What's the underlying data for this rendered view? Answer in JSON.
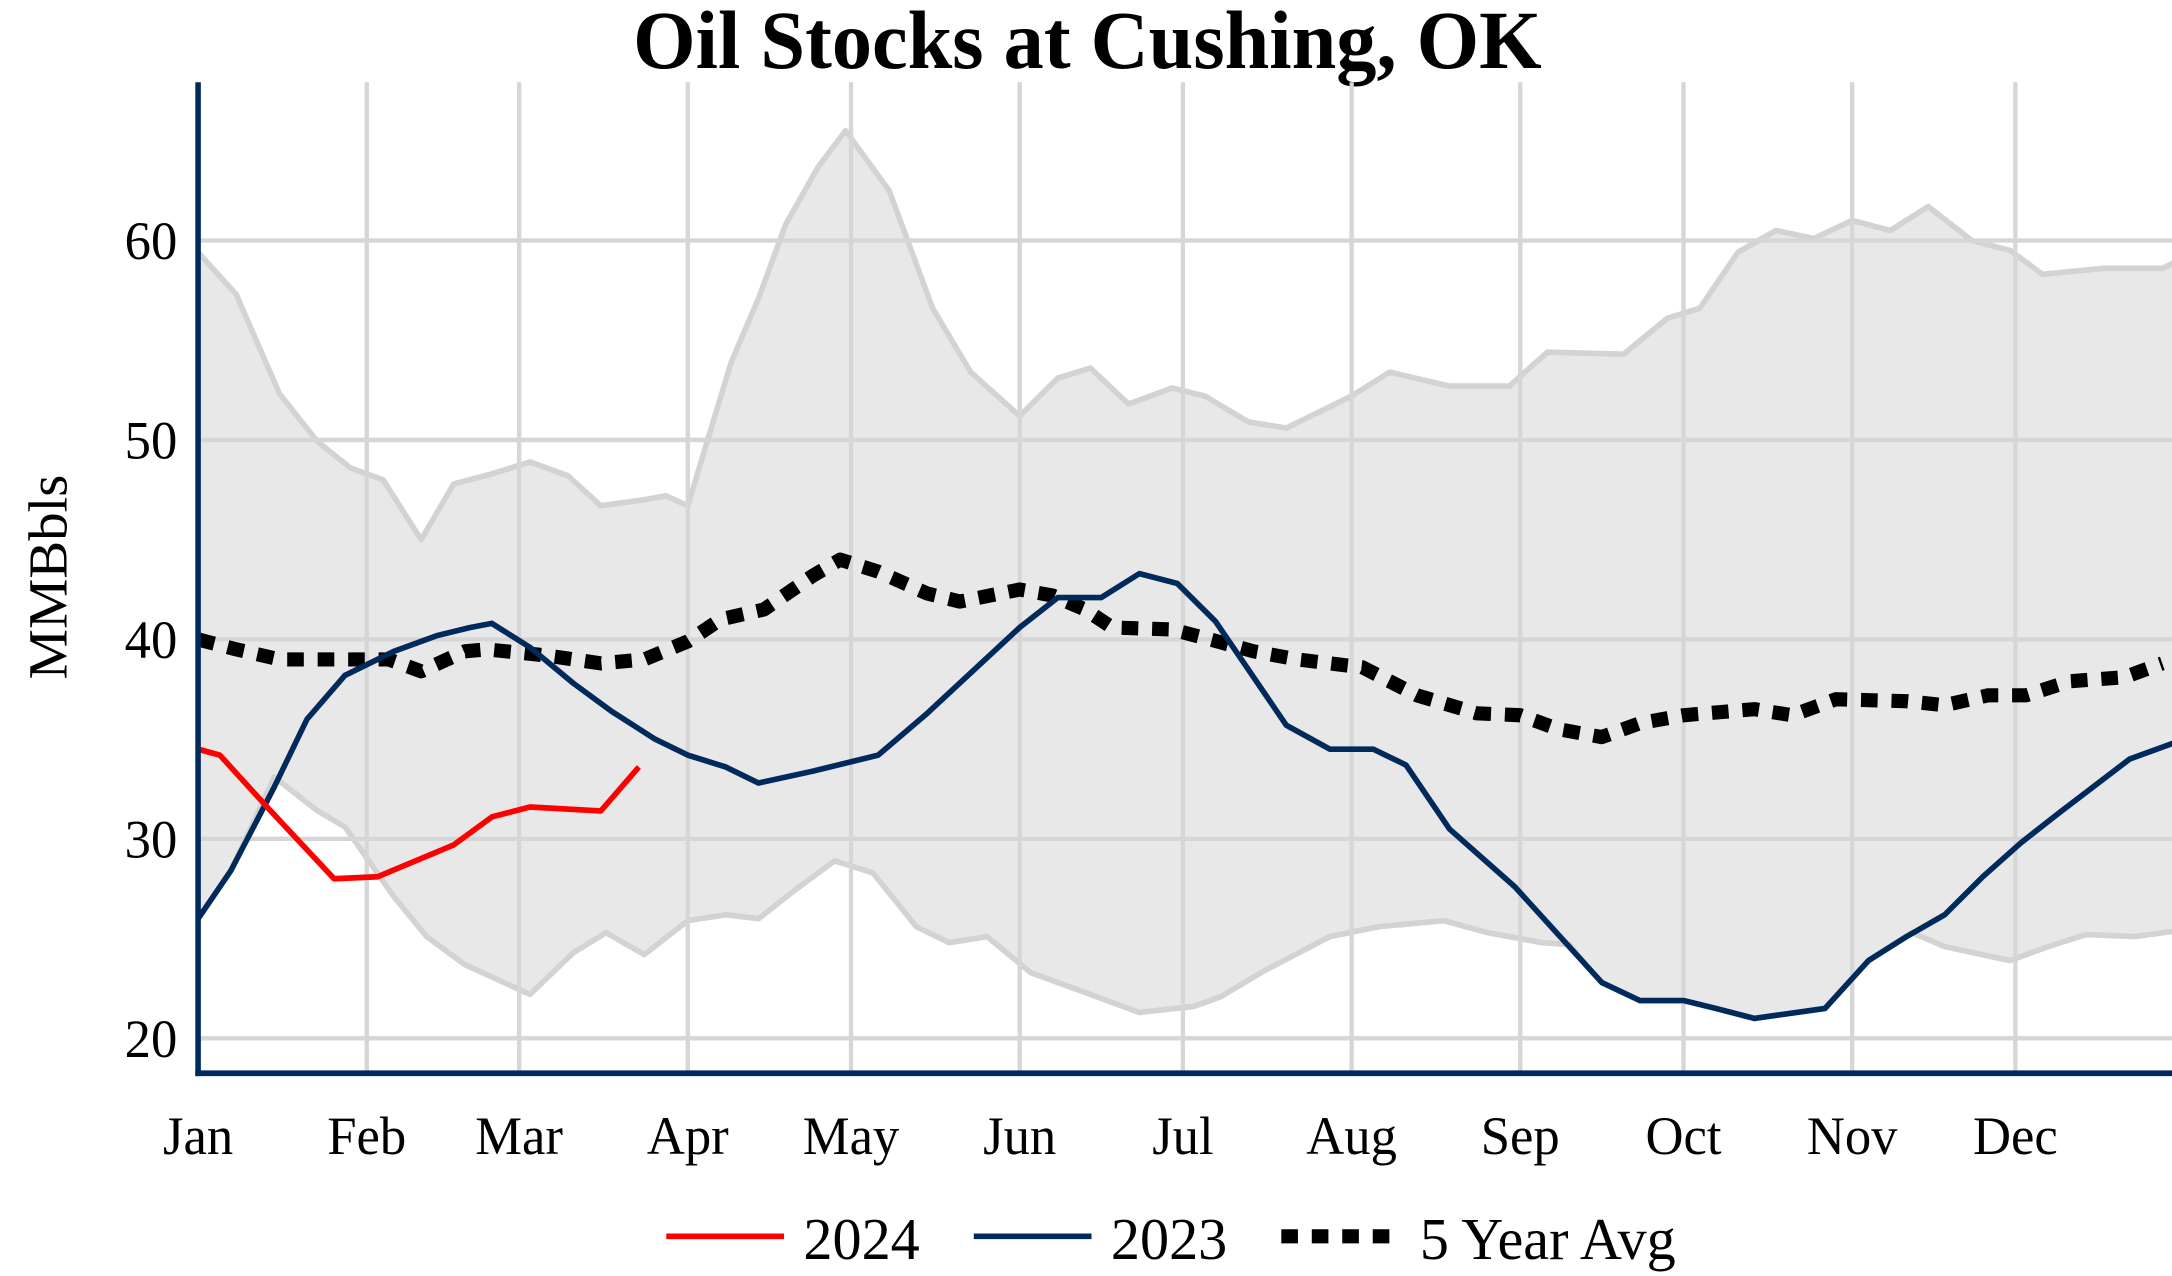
{
  "chart_data": {
    "type": "line",
    "title": "Oil Stocks at Cushing, OK",
    "xlabel": "",
    "ylabel": "MMBbls",
    "ylim": [
      18.3,
      68
    ],
    "yticks": [
      20,
      30,
      40,
      50,
      60
    ],
    "xticks": [
      "Jan",
      "Feb",
      "Mar",
      "Apr",
      "May",
      "Jun",
      "Jul",
      "Aug",
      "Sep",
      "Oct",
      "Nov",
      "Dec"
    ],
    "grid": true,
    "legend_position": "bottom",
    "colors": {
      "2024": "#ff0000",
      "2023": "#002a5c",
      "avg": "#000000",
      "range_fill": "#e8e8e8",
      "range_line": "#d3d3d3",
      "grid": "#d6d6d6",
      "axis": "#002a5c"
    },
    "range": {
      "max": [
        [
          "Jan 01",
          59.4
        ],
        [
          "Jan 08",
          57.3
        ],
        [
          "Jan 16",
          52.3
        ],
        [
          "Jan 23",
          49.9
        ],
        [
          "Jan 29",
          48.6
        ],
        [
          "Feb 04",
          48.0
        ],
        [
          "Feb 11",
          45.0
        ],
        [
          "Feb 17",
          47.8
        ],
        [
          "Feb 24",
          48.3
        ],
        [
          "Mar 03",
          48.9
        ],
        [
          "Mar 10",
          48.2
        ],
        [
          "Mar 16",
          46.7
        ],
        [
          "Mar 24",
          47.0
        ],
        [
          "Mar 28",
          47.2
        ],
        [
          "Apr 01",
          46.7
        ],
        [
          "Apr 09",
          53.9
        ],
        [
          "Apr 14",
          57.1
        ],
        [
          "Apr 19",
          60.8
        ],
        [
          "Apr 25",
          63.7
        ],
        [
          "Apr 30",
          65.5
        ],
        [
          "May 08",
          62.5
        ],
        [
          "May 16",
          56.6
        ],
        [
          "May 23",
          53.4
        ],
        [
          "Jun 01",
          51.2
        ],
        [
          "Jun 08",
          53.1
        ],
        [
          "Jun 14",
          53.6
        ],
        [
          "Jun 21",
          51.8
        ],
        [
          "Jun 29",
          52.6
        ],
        [
          "Jul 05",
          52.2
        ],
        [
          "Jul 13",
          50.9
        ],
        [
          "Jul 20",
          50.6
        ],
        [
          "Jul 26",
          51.4
        ],
        [
          "Aug 01",
          52.2
        ],
        [
          "Aug 08",
          53.4
        ],
        [
          "Aug 19",
          52.7
        ],
        [
          "Aug 30",
          52.7
        ],
        [
          "Sep 06",
          54.4
        ],
        [
          "Sep 20",
          54.3
        ],
        [
          "Sep 28",
          56.1
        ],
        [
          "Oct 04",
          56.6
        ],
        [
          "Oct 11",
          59.4
        ],
        [
          "Oct 18",
          60.5
        ],
        [
          "Oct 25",
          60.1
        ],
        [
          "Nov 01",
          61.0
        ],
        [
          "Nov 08",
          60.5
        ],
        [
          "Nov 15",
          61.7
        ],
        [
          "Nov 23",
          60.0
        ],
        [
          "Nov 30",
          59.5
        ],
        [
          "Dec 06",
          58.3
        ],
        [
          "Dec 17",
          58.6
        ],
        [
          "Dec 28",
          58.6
        ],
        [
          "Dec 31",
          59.0
        ]
      ],
      "min": [
        [
          "Jan 01",
          26.0
        ],
        [
          "Jan 07",
          28.4
        ],
        [
          "Jan 15",
          33.1
        ],
        [
          "Jan 23",
          31.4
        ],
        [
          "Jan 28",
          30.6
        ],
        [
          "Feb 06",
          27.1
        ],
        [
          "Feb 12",
          25.1
        ],
        [
          "Feb 19",
          23.7
        ],
        [
          "Mar 03",
          22.2
        ],
        [
          "Mar 11",
          24.3
        ],
        [
          "Mar 17",
          25.3
        ],
        [
          "Mar 24",
          24.2
        ],
        [
          "Apr 01",
          25.9
        ],
        [
          "Apr 08",
          26.2
        ],
        [
          "Apr 14",
          26.0
        ],
        [
          "Apr 21",
          27.5
        ],
        [
          "Apr 28",
          28.9
        ],
        [
          "May 05",
          28.3
        ],
        [
          "May 13",
          25.6
        ],
        [
          "May 19",
          24.8
        ],
        [
          "May 26",
          25.1
        ],
        [
          "Jun 03",
          23.3
        ],
        [
          "Jun 14",
          22.2
        ],
        [
          "Jun 23",
          21.3
        ],
        [
          "Jul 03",
          21.6
        ],
        [
          "Jul 08",
          22.1
        ],
        [
          "Jul 16",
          23.4
        ],
        [
          "Jul 28",
          25.1
        ],
        [
          "Aug 06",
          25.6
        ],
        [
          "Aug 18",
          25.9
        ],
        [
          "Aug 26",
          25.3
        ],
        [
          "Sep 05",
          24.8
        ],
        [
          "Sep 10",
          24.7
        ],
        [
          "Sep 13",
          23.7
        ],
        [
          "Sep 16",
          22.8
        ],
        [
          "Sep 23",
          21.9
        ],
        [
          "Oct 01",
          21.9
        ],
        [
          "Oct 07",
          21.5
        ],
        [
          "Oct 14",
          21.0
        ],
        [
          "Oct 27",
          21.5
        ],
        [
          "Nov 04",
          23.9
        ],
        [
          "Nov 12",
          25.3
        ],
        [
          "Nov 18",
          24.6
        ],
        [
          "Nov 30",
          23.9
        ],
        [
          "Dec 07",
          24.6
        ],
        [
          "Dec 14",
          25.2
        ],
        [
          "Dec 23",
          25.1
        ],
        [
          "Dec 31",
          25.4
        ]
      ]
    },
    "series": [
      {
        "name": "2024",
        "key": "2024",
        "style": "solid",
        "points": [
          [
            "Jan 01",
            34.5
          ],
          [
            "Jan 05",
            34.2
          ],
          [
            "Jan 14",
            31.5
          ],
          [
            "Jan 26",
            28.0
          ],
          [
            "Feb 03",
            28.1
          ],
          [
            "Feb 17",
            29.7
          ],
          [
            "Feb 24",
            31.1
          ],
          [
            "Mar 03",
            31.6
          ],
          [
            "Mar 16",
            31.4
          ],
          [
            "Mar 23",
            33.6
          ]
        ]
      },
      {
        "name": "2023",
        "key": "2023",
        "style": "solid",
        "points": [
          [
            "Jan 01",
            26.0
          ],
          [
            "Jan 07",
            28.4
          ],
          [
            "Jan 15",
            32.6
          ],
          [
            "Jan 21",
            36.0
          ],
          [
            "Jan 28",
            38.2
          ],
          [
            "Feb 06",
            39.4
          ],
          [
            "Feb 14",
            40.2
          ],
          [
            "Feb 20",
            40.6
          ],
          [
            "Feb 24",
            40.8
          ],
          [
            "Mar 03",
            39.6
          ],
          [
            "Mar 11",
            37.8
          ],
          [
            "Mar 18",
            36.4
          ],
          [
            "Mar 26",
            35.0
          ],
          [
            "Apr 01",
            34.2
          ],
          [
            "Apr 08",
            33.6
          ],
          [
            "Apr 14",
            32.8
          ],
          [
            "Apr 24",
            33.4
          ],
          [
            "May 06",
            34.2
          ],
          [
            "May 15",
            36.3
          ],
          [
            "Jun 01",
            40.6
          ],
          [
            "Jun 08",
            42.1
          ],
          [
            "Jun 16",
            42.1
          ],
          [
            "Jun 23",
            43.3
          ],
          [
            "Jun 30",
            42.8
          ],
          [
            "Jul 07",
            40.9
          ],
          [
            "Jul 20",
            35.7
          ],
          [
            "Jul 28",
            34.5
          ],
          [
            "Aug 05",
            34.5
          ],
          [
            "Aug 11",
            33.7
          ],
          [
            "Aug 19",
            30.5
          ],
          [
            "Aug 31",
            27.6
          ],
          [
            "Sep 13",
            23.7
          ],
          [
            "Sep 16",
            22.8
          ],
          [
            "Sep 23",
            21.9
          ],
          [
            "Oct 01",
            21.9
          ],
          [
            "Oct 07",
            21.5
          ],
          [
            "Oct 14",
            21.0
          ],
          [
            "Oct 27",
            21.5
          ],
          [
            "Nov 04",
            23.9
          ],
          [
            "Nov 11",
            25.1
          ],
          [
            "Nov 18",
            26.2
          ],
          [
            "Nov 25",
            28.1
          ],
          [
            "Dec 02",
            29.8
          ],
          [
            "Dec 09",
            31.3
          ],
          [
            "Dec 22",
            34.0
          ],
          [
            "Dec 30",
            34.8
          ]
        ]
      },
      {
        "name": "5 Year Avg",
        "key": "avg",
        "style": "dotted",
        "points": [
          [
            "Jan 01",
            40.0
          ],
          [
            "Jan 08",
            39.5
          ],
          [
            "Jan 16",
            39.0
          ],
          [
            "Jan 25",
            39.0
          ],
          [
            "Feb 05",
            39.0
          ],
          [
            "Feb 11",
            38.4
          ],
          [
            "Feb 19",
            39.4
          ],
          [
            "Feb 23",
            39.5
          ],
          [
            "Mar 06",
            39.2
          ],
          [
            "Mar 16",
            38.8
          ],
          [
            "Mar 24",
            39.0
          ],
          [
            "Apr 01",
            39.9
          ],
          [
            "Apr 07",
            41.0
          ],
          [
            "Apr 15",
            41.5
          ],
          [
            "Apr 24",
            43.2
          ],
          [
            "Apr 29",
            44.0
          ],
          [
            "May 06",
            43.4
          ],
          [
            "May 15",
            42.3
          ],
          [
            "May 21",
            41.9
          ],
          [
            "Jun 01",
            42.5
          ],
          [
            "Jun 07",
            42.2
          ],
          [
            "Jun 13",
            41.5
          ],
          [
            "Jun 18",
            40.6
          ],
          [
            "Jun 29",
            40.5
          ],
          [
            "Jul 06",
            40.0
          ],
          [
            "Jul 14",
            39.4
          ],
          [
            "Jul 22",
            39.0
          ],
          [
            "Aug 03",
            38.6
          ],
          [
            "Aug 13",
            37.2
          ],
          [
            "Aug 24",
            36.3
          ],
          [
            "Sep 01",
            36.2
          ],
          [
            "Sep 08",
            35.5
          ],
          [
            "Sep 16",
            35.1
          ],
          [
            "Sep 23",
            35.8
          ],
          [
            "Oct 01",
            36.2
          ],
          [
            "Oct 14",
            36.5
          ],
          [
            "Oct 21",
            36.2
          ],
          [
            "Oct 29",
            37.0
          ],
          [
            "Nov 11",
            36.9
          ],
          [
            "Nov 18",
            36.7
          ],
          [
            "Nov 26",
            37.2
          ],
          [
            "Dec 03",
            37.2
          ],
          [
            "Dec 11",
            37.9
          ],
          [
            "Dec 21",
            38.1
          ],
          [
            "Dec 28",
            38.8
          ]
        ]
      }
    ]
  }
}
